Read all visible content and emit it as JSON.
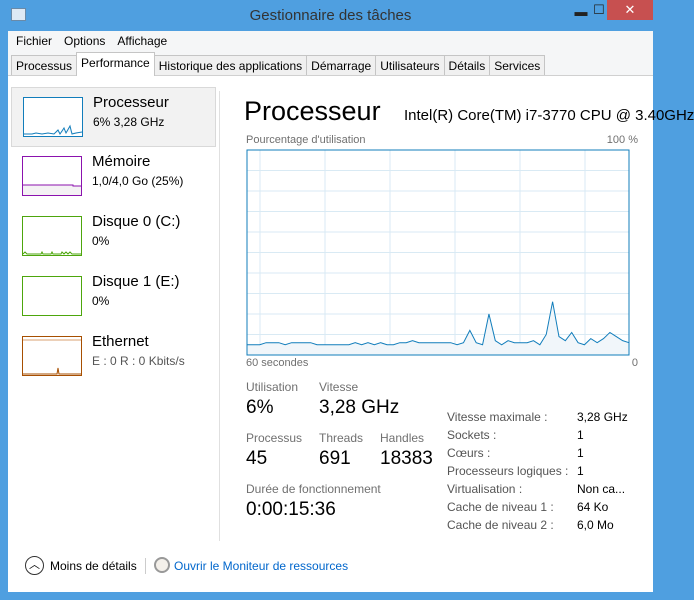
{
  "window": {
    "title": "Gestionnaire des tâches",
    "minimize": "▬",
    "maximize": "☐",
    "close": "✕"
  },
  "menu": [
    "Fichier",
    "Options",
    "Affichage"
  ],
  "tabs": [
    {
      "label": "Processus"
    },
    {
      "label": "Performance",
      "active": true
    },
    {
      "label": "Historique des applications"
    },
    {
      "label": "Démarrage"
    },
    {
      "label": "Utilisateurs"
    },
    {
      "label": "Détails"
    },
    {
      "label": "Services"
    }
  ],
  "sidebar": [
    {
      "name": "Processeur",
      "value": "6% 3,28 GHz",
      "color": "#117dbb",
      "active": true
    },
    {
      "name": "Mémoire",
      "value": "1,0/4,0 Go (25%)",
      "color": "#8b12ae"
    },
    {
      "name": "Disque 0 (C:)",
      "value": "0%",
      "color": "#4da60c"
    },
    {
      "name": "Disque 1 (E:)",
      "value": "0%",
      "color": "#4da60c"
    },
    {
      "name": "Ethernet",
      "value": "E : 0 R : 0 Kbits/s",
      "color": "#a74f01"
    }
  ],
  "main": {
    "title": "Processeur",
    "cpu_name": "Intel(R) Core(TM) i7-3770 CPU @ 3.40GHz",
    "graph_label": "Pourcentage d'utilisation",
    "graph_max": "100 %",
    "graph_left": "60 secondes",
    "graph_right": "0",
    "stats": {
      "utilisation_label": "Utilisation",
      "utilisation": "6%",
      "vitesse_label": "Vitesse",
      "vitesse": "3,28 GHz",
      "processus_label": "Processus",
      "processus": "45",
      "threads_label": "Threads",
      "threads": "691",
      "handles_label": "Handles",
      "handles": "18383",
      "uptime_label": "Durée de fonctionnement",
      "uptime": "0:00:15:36"
    },
    "details": [
      {
        "k": "Vitesse maximale :",
        "v": "3,28 GHz"
      },
      {
        "k": "Sockets :",
        "v": "1"
      },
      {
        "k": "Cœurs :",
        "v": "1"
      },
      {
        "k": "Processeurs logiques :",
        "v": "1"
      },
      {
        "k": "Virtualisation :",
        "v": "Non ca..."
      },
      {
        "k": "Cache de niveau 1 :",
        "v": "64 Ko"
      },
      {
        "k": "Cache de niveau 2 :",
        "v": "6,0 Mo"
      }
    ]
  },
  "chart_data": {
    "type": "area",
    "xlabel": "60 secondes",
    "ylabel": "Pourcentage d'utilisation",
    "ylim": [
      0,
      100
    ],
    "x_range_seconds": [
      60,
      0
    ],
    "grid": true,
    "values": [
      5,
      5,
      5,
      6,
      6,
      6,
      5,
      6,
      6,
      6,
      6,
      5,
      5,
      5,
      5,
      5,
      5,
      6,
      5,
      6,
      5,
      6,
      5,
      5,
      6,
      6,
      7,
      6,
      6,
      6,
      6,
      6,
      6,
      5,
      6,
      12,
      6,
      5,
      20,
      7,
      5,
      7,
      6,
      6,
      6,
      7,
      5,
      10,
      26,
      9,
      7,
      11,
      6,
      5,
      8,
      6,
      8,
      11,
      9,
      7,
      6
    ]
  },
  "footer": {
    "less_details": "Moins de détails",
    "resource_monitor": "Ouvrir le Moniteur de ressources"
  }
}
